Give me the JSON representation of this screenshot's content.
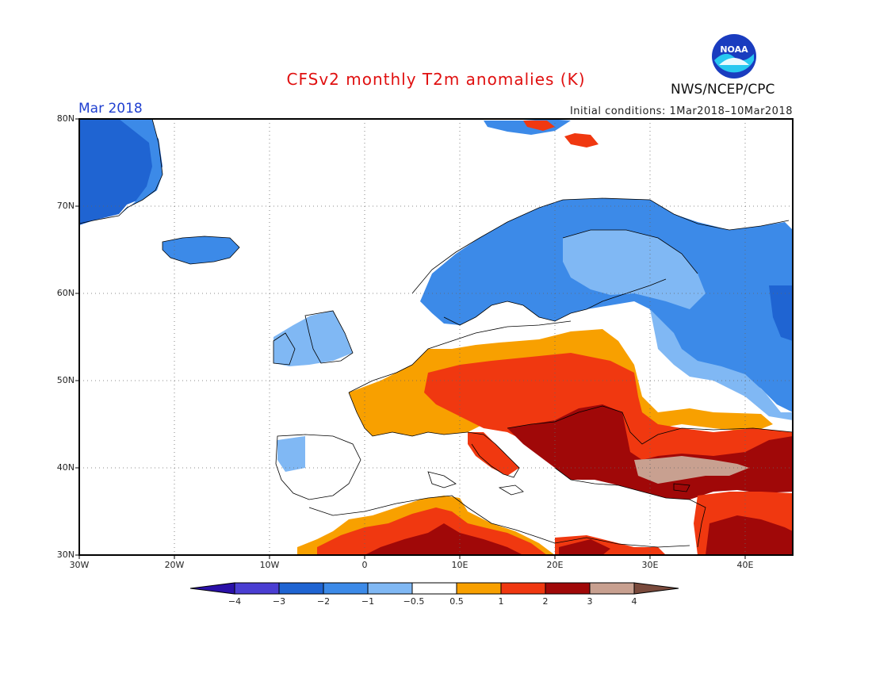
{
  "title": "CFSv2 monthly T2m anomalies (K)",
  "period": "Mar 2018",
  "initial_conditions": "Initial conditions: 1Mar2018–10Mar2018",
  "agency": "NWS/NCEP/CPC",
  "logo_text": "NOAA",
  "map": {
    "lon_range": [
      -30,
      45
    ],
    "lat_range": [
      30,
      80
    ],
    "lon_ticks": [
      "30W",
      "20W",
      "10W",
      "0",
      "10E",
      "20E",
      "30E",
      "40E"
    ],
    "lat_ticks": [
      "30N",
      "40N",
      "50N",
      "60N",
      "70N",
      "80N"
    ],
    "grid": "dotted"
  },
  "colorbar": {
    "labels": [
      "−4",
      "−3",
      "−2",
      "−1",
      "−0.5",
      "0.5",
      "1",
      "2",
      "3",
      "4"
    ],
    "colors": [
      "#2a10a8",
      "#4a3ed2",
      "#1f64d2",
      "#3c8ae8",
      "#80b8f4",
      "#ffffff",
      "#f8a000",
      "#f03810",
      "#a00808",
      "#c8a090",
      "#7a4a3c"
    ]
  },
  "anomaly_regions": [
    {
      "class": "cold-strong",
      "color": "#1f64d2",
      "region": "Greenland east coast"
    },
    {
      "class": "cold",
      "color": "#3c8ae8",
      "region": "Iceland, Scandinavia, Svalbard"
    },
    {
      "class": "cool",
      "color": "#80b8f4",
      "region": "NW Russia, Ireland, Baltic"
    },
    {
      "class": "warm",
      "color": "#f8a000",
      "region": "France, Germany, Poland"
    },
    {
      "class": "hot",
      "color": "#f03810",
      "region": "Central Europe, North Africa, Middle East"
    },
    {
      "class": "very-hot",
      "color": "#a00808",
      "region": "Balkans, Turkey, Sahara"
    },
    {
      "class": "extreme",
      "color": "#c8a090",
      "region": "Central Anatolia"
    }
  ]
}
